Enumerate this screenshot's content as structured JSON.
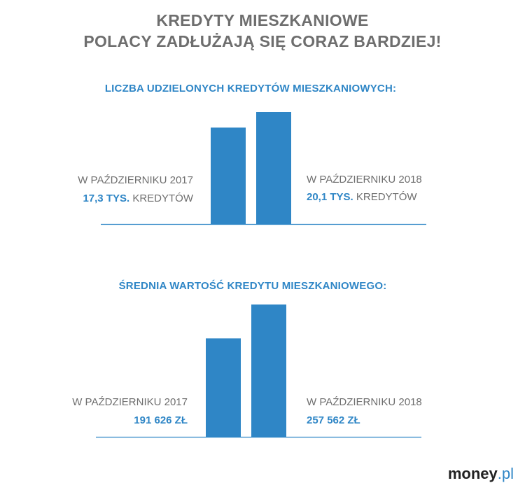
{
  "header": {
    "line1": "KREDYTY MIESZKANIOWE",
    "line2": "POLACY ZADŁUŻAJĄ SIĘ CORAZ BARDZIEJ!"
  },
  "colors": {
    "accent": "#2f86c6",
    "text": "#6e6e6e"
  },
  "chart_data": [
    {
      "type": "bar",
      "title": "LICZBA UDZIELONYCH KREDYTÓW MIESZKANIOWYCH:",
      "categories": [
        "W PAŹDZIERNIKU 2017",
        "W PAŹDZIERNIKU 2018"
      ],
      "values": [
        17.3,
        20.1
      ],
      "unit": "TYS. KREDYTÓW",
      "labels": [
        {
          "period": "W PAŹDZIERNIKU 2017",
          "value": "17,3 TYS.",
          "suffix": "KREDYTÓW"
        },
        {
          "period": "W PAŹDZIERNIKU 2018",
          "value": "20,1 TYS.",
          "suffix": "KREDYTÓW"
        }
      ]
    },
    {
      "type": "bar",
      "title": "ŚREDNIA WARTOŚĆ KREDYTU  MIESZKANIOWEGO:",
      "categories": [
        "W PAŹDZIERNIKU 2017",
        "W PAŹDZIERNIKU 2018"
      ],
      "values": [
        191626,
        257562
      ],
      "unit": "ZŁ",
      "labels": [
        {
          "period": "W PAŹDZIERNIKU 2017",
          "value": "191 626 ZŁ"
        },
        {
          "period": "W PAŹDZIERNIKU 2018",
          "value": "257 562 ZŁ"
        }
      ]
    }
  ],
  "brand": {
    "name": "money",
    "tld": ".pl"
  }
}
